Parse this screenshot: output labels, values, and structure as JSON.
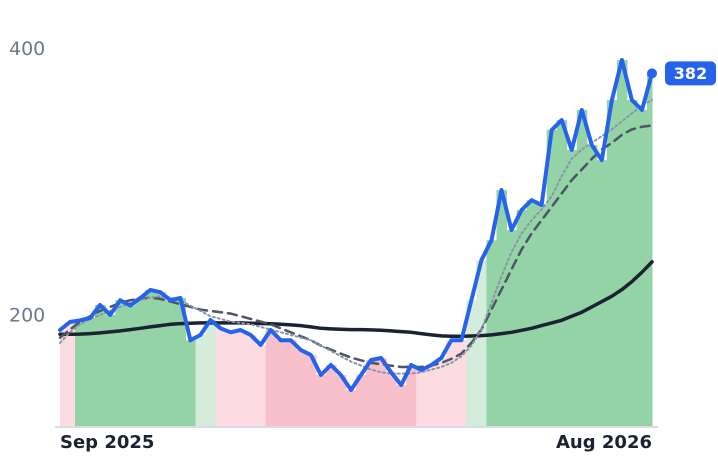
{
  "chart_data": {
    "type": "line",
    "categories": [
      "Sep 2025",
      null,
      null,
      null,
      null,
      null,
      null,
      null,
      null,
      null,
      null,
      null,
      null,
      null,
      null,
      null,
      null,
      null,
      null,
      null,
      null,
      null,
      null,
      null,
      null,
      null,
      null,
      null,
      null,
      null,
      null,
      null,
      null,
      null,
      null,
      null,
      null,
      null,
      null,
      null,
      null,
      null,
      null,
      null,
      null,
      null,
      null,
      null,
      null,
      null,
      null,
      null,
      null,
      null,
      null,
      null,
      null,
      null,
      null,
      "Aug 2026"
    ],
    "ylim": [
      117,
      437
    ],
    "yticks": [
      200,
      400
    ],
    "band_colors": [
      "#fcdce2",
      "#fcdce2",
      "#94d3a6",
      "#94d3a6",
      "#94d3a6",
      "#94d3a6",
      "#94d3a6",
      "#94d3a6",
      "#94d3a6",
      "#94d3a6",
      "#94d3a6",
      "#94d3a6",
      "#94d3a6",
      "#94d3a6",
      "#d4ecda",
      "#d4ecda",
      "#fcdce2",
      "#fcdce2",
      "#fcdce2",
      "#fcdce2",
      "#fcdce2",
      "#f8c0cb",
      "#f8c0cb",
      "#f8c0cb",
      "#f8c0cb",
      "#f8c0cb",
      "#f8c0cb",
      "#f8c0cb",
      "#f8c0cb",
      "#f8c0cb",
      "#f8c0cb",
      "#f8c0cb",
      "#f8c0cb",
      "#f8c0cb",
      "#f8c0cb",
      "#f8c0cb",
      "#fcdce2",
      "#fcdce2",
      "#fcdce2",
      "#fcdce2",
      "#fcdce2",
      "#d4ecda",
      "#d4ecda",
      "#94d3a6",
      "#94d3a6",
      "#94d3a6",
      "#94d3a6",
      "#94d3a6",
      "#94d3a6",
      "#94d3a6",
      "#94d3a6",
      "#94d3a6",
      "#94d3a6",
      "#94d3a6",
      "#94d3a6",
      "#94d3a6",
      "#94d3a6",
      "#94d3a6",
      "#94d3a6",
      "#94d3a6"
    ],
    "series": [
      {
        "color": "#2563eb",
        "style": "solid",
        "width": 4,
        "values": [
          189.7,
          195.7,
          197,
          198.7,
          208.4,
          201,
          212,
          208,
          213.7,
          219.7,
          218,
          212,
          213.7,
          182,
          186,
          197.2,
          191,
          188,
          189.7,
          186,
          178.5,
          189.7,
          182,
          182,
          174.7,
          171,
          156,
          163.5,
          156,
          144.7,
          156,
          167.2,
          168.7,
          158,
          148.5,
          163.5,
          159.7,
          163.5,
          168.7,
          182,
          182,
          212,
          242,
          257,
          294.6,
          264.6,
          279.6,
          287,
          283.4,
          339.6,
          347,
          324.6,
          354.6,
          328.3,
          317,
          362,
          392,
          362,
          354.6,
          382
        ]
      },
      {
        "color": "#8a94a6",
        "style": "dotted",
        "width": 2,
        "values": [
          180,
          188,
          194,
          198,
          201,
          204,
          207,
          210,
          212,
          214,
          215,
          214,
          212,
          208,
          204,
          200,
          198,
          196,
          195,
          194,
          192,
          190,
          188,
          186,
          184,
          182,
          178,
          174,
          170,
          166,
          163,
          160,
          158,
          157,
          157,
          157,
          158,
          160,
          162,
          165,
          170,
          178,
          190,
          210,
          230,
          248,
          262,
          272,
          280,
          290,
          305,
          318,
          325,
          330,
          335,
          340,
          346,
          352,
          358,
          362
        ]
      },
      {
        "color": "#4b5565",
        "style": "dashed",
        "width": 2.5,
        "values": [
          184,
          190,
          196,
          200,
          204,
          207,
          210,
          212,
          213,
          214,
          213,
          211,
          209,
          207,
          205,
          204,
          203,
          202,
          200,
          198,
          196,
          194,
          191,
          188,
          185,
          182,
          178,
          175,
          172,
          169,
          167,
          165,
          164,
          163,
          162,
          162,
          162,
          163,
          165,
          168,
          172,
          180,
          190,
          205,
          220,
          235,
          250,
          262,
          272,
          282,
          292,
          302,
          310,
          318,
          325,
          330,
          336,
          340,
          342,
          343
        ]
      },
      {
        "color": "#1b2232",
        "style": "solid",
        "width": 3.5,
        "values": [
          186.5,
          186.5,
          186.6,
          187,
          187.5,
          188.3,
          189,
          190,
          191,
          192,
          193,
          194,
          194.5,
          194.8,
          195,
          195,
          195,
          195,
          195,
          194.8,
          194.6,
          194.4,
          194,
          193.5,
          193,
          192,
          191,
          190.5,
          190.2,
          190,
          190,
          189.8,
          189.5,
          189,
          188.5,
          188,
          187,
          186,
          185.3,
          185,
          185,
          185.2,
          185.5,
          186,
          187,
          188,
          189.5,
          191,
          193,
          195,
          197,
          200,
          203,
          207,
          211,
          215,
          220,
          226,
          233,
          240.7
        ]
      }
    ]
  }
}
